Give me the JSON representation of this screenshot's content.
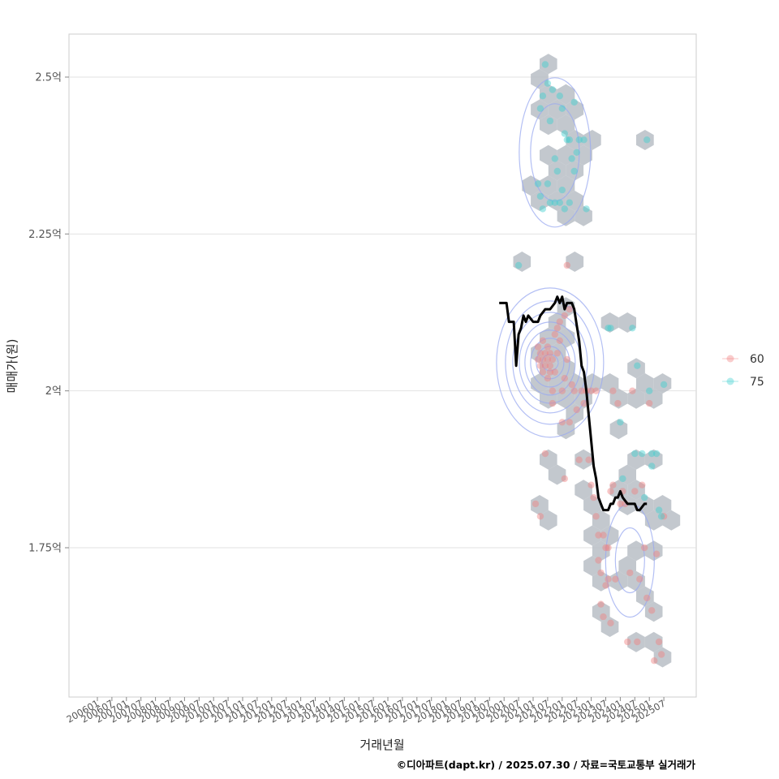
{
  "chart_data": {
    "type": "scatter",
    "xlabel": "거래년월",
    "ylabel": "매매가(원)",
    "caption": "©디아파트(dapt.kr) / 2025.07.30 / 자료=국토교통부 실거래가",
    "x_ticks": [
      "200601",
      "200607",
      "200701",
      "200707",
      "200801",
      "200807",
      "200901",
      "200907",
      "201001",
      "201007",
      "201101",
      "201107",
      "201201",
      "201207",
      "201301",
      "201307",
      "201401",
      "201407",
      "201501",
      "201507",
      "201601",
      "201607",
      "201701",
      "201707",
      "201801",
      "201807",
      "201901",
      "201907",
      "202001",
      "202007",
      "202101",
      "202107",
      "202201",
      "202207",
      "202301",
      "202307",
      "202401",
      "202407",
      "202501",
      "202507"
    ],
    "y_ticks": [
      {
        "value": 17500,
        "label": "1.75억"
      },
      {
        "value": 20000,
        "label": "2억"
      },
      {
        "value": 22500,
        "label": "2.25억"
      },
      {
        "value": 25000,
        "label": "2.5억"
      }
    ],
    "ylim": [
      15500,
      26000
    ],
    "grid": true,
    "legend_position": "right",
    "colors": {
      "60": "#f08080",
      "75": "#3fcfcf",
      "hex": "#b9bec6",
      "density": "#9aaaf0",
      "trend": "#000000"
    },
    "series": [
      {
        "name": "60",
        "points": [
          [
            "2021-03",
            20500
          ],
          [
            "2021-03",
            20700
          ],
          [
            "2021-04",
            20400
          ],
          [
            "2021-04",
            20600
          ],
          [
            "2021-05",
            20300
          ],
          [
            "2021-05",
            20500
          ],
          [
            "2021-05",
            20800
          ],
          [
            "2021-06",
            20400
          ],
          [
            "2021-06",
            20600
          ],
          [
            "2021-07",
            20200
          ],
          [
            "2021-07",
            20500
          ],
          [
            "2021-07",
            20700
          ],
          [
            "2021-08",
            20400
          ],
          [
            "2021-08",
            20300
          ],
          [
            "2021-08",
            20600
          ],
          [
            "2021-09",
            20000
          ],
          [
            "2021-09",
            19800
          ],
          [
            "2021-09",
            20500
          ],
          [
            "2021-10",
            20300
          ],
          [
            "2021-10",
            20900
          ],
          [
            "2021-11",
            21000
          ],
          [
            "2021-11",
            20600
          ],
          [
            "2021-12",
            21100
          ],
          [
            "2021-12",
            20800
          ],
          [
            "2022-01",
            20000
          ],
          [
            "2022-01",
            19500
          ],
          [
            "2022-02",
            20200
          ],
          [
            "2022-02",
            21200
          ],
          [
            "2022-03",
            22000
          ],
          [
            "2022-03",
            20500
          ],
          [
            "2022-04",
            19500
          ],
          [
            "2022-04",
            21300
          ],
          [
            "2022-05",
            20100
          ],
          [
            "2022-06",
            20000
          ],
          [
            "2022-07",
            19700
          ],
          [
            "2022-08",
            18900
          ],
          [
            "2022-10",
            19800
          ],
          [
            "2022-11",
            20000
          ],
          [
            "2022-12",
            18900
          ],
          [
            "2023-01",
            18500
          ],
          [
            "2023-01",
            20000
          ],
          [
            "2023-02",
            18300
          ],
          [
            "2023-03",
            20000
          ],
          [
            "2023-03",
            18000
          ],
          [
            "2023-04",
            17700
          ],
          [
            "2023-04",
            17300
          ],
          [
            "2023-05",
            17100
          ],
          [
            "2023-05",
            16600
          ],
          [
            "2023-06",
            17700
          ],
          [
            "2023-06",
            16400
          ],
          [
            "2023-07",
            17500
          ],
          [
            "2023-07",
            16900
          ],
          [
            "2023-08",
            17500
          ],
          [
            "2023-08",
            17000
          ],
          [
            "2023-09",
            18400
          ],
          [
            "2023-09",
            16300
          ],
          [
            "2023-10",
            20000
          ],
          [
            "2023-10",
            18500
          ],
          [
            "2023-11",
            17000
          ],
          [
            "2023-12",
            19800
          ],
          [
            "2024-01",
            18200
          ],
          [
            "2024-02",
            18400
          ],
          [
            "2024-03",
            18200
          ],
          [
            "2024-04",
            16000
          ],
          [
            "2024-05",
            17100
          ],
          [
            "2024-06",
            20000
          ],
          [
            "2024-07",
            18400
          ],
          [
            "2024-08",
            16000
          ],
          [
            "2024-09",
            17000
          ],
          [
            "2024-10",
            18500
          ],
          [
            "2024-11",
            17500
          ],
          [
            "2024-12",
            16700
          ],
          [
            "2025-01",
            19800
          ],
          [
            "2025-02",
            16500
          ],
          [
            "2025-03",
            15700
          ],
          [
            "2025-04",
            17400
          ],
          [
            "2025-05",
            16000
          ],
          [
            "2025-06",
            15800
          ],
          [
            "2025-07",
            18000
          ],
          [
            "2021-02",
            18200
          ],
          [
            "2021-04",
            18000
          ],
          [
            "2021-06",
            19000
          ],
          [
            "2022-09",
            20000
          ],
          [
            "2022-02",
            18600
          ]
        ]
      },
      {
        "name": "75",
        "points": [
          [
            "2020-07",
            22000
          ],
          [
            "2021-04",
            24500
          ],
          [
            "2021-05",
            24700
          ],
          [
            "2021-06",
            25200
          ],
          [
            "2021-07",
            24900
          ],
          [
            "2021-08",
            24300
          ],
          [
            "2021-09",
            24800
          ],
          [
            "2021-10",
            23700
          ],
          [
            "2021-11",
            23500
          ],
          [
            "2021-12",
            24700
          ],
          [
            "2022-01",
            24500
          ],
          [
            "2022-02",
            24100
          ],
          [
            "2022-03",
            24000
          ],
          [
            "2022-04",
            24000
          ],
          [
            "2022-05",
            23700
          ],
          [
            "2022-06",
            23500
          ],
          [
            "2021-03",
            23300
          ],
          [
            "2021-04",
            23100
          ],
          [
            "2021-05",
            22900
          ],
          [
            "2021-07",
            23300
          ],
          [
            "2021-08",
            23000
          ],
          [
            "2021-10",
            23000
          ],
          [
            "2021-12",
            23000
          ],
          [
            "2022-01",
            23200
          ],
          [
            "2022-02",
            22900
          ],
          [
            "2022-04",
            23000
          ],
          [
            "2022-06",
            24600
          ],
          [
            "2022-07",
            23800
          ],
          [
            "2022-08",
            24000
          ],
          [
            "2022-10",
            24000
          ],
          [
            "2022-11",
            22900
          ],
          [
            "2023-08",
            21000
          ],
          [
            "2024-01",
            19500
          ],
          [
            "2024-02",
            18600
          ],
          [
            "2024-06",
            21000
          ],
          [
            "2024-07",
            19000
          ],
          [
            "2024-08",
            20400
          ],
          [
            "2024-10",
            19000
          ],
          [
            "2024-11",
            18300
          ],
          [
            "2025-01",
            20000
          ],
          [
            "2025-02",
            18800
          ],
          [
            "2025-04",
            19000
          ],
          [
            "2025-05",
            18100
          ],
          [
            "2025-06",
            18000
          ],
          [
            "2025-07",
            20100
          ],
          [
            "2023-09",
            21000
          ],
          [
            "2024-12",
            24000
          ],
          [
            "2025-02",
            19000
          ]
        ]
      }
    ],
    "trend_line": [
      [
        "2019-11",
        21400
      ],
      [
        "2020-02",
        21400
      ],
      [
        "2020-03",
        21100
      ],
      [
        "2020-05",
        21100
      ],
      [
        "2020-06",
        20400
      ],
      [
        "2020-07",
        20900
      ],
      [
        "2020-08",
        21000
      ],
      [
        "2020-09",
        21200
      ],
      [
        "2020-10",
        21100
      ],
      [
        "2020-11",
        21200
      ],
      [
        "2021-01",
        21100
      ],
      [
        "2021-03",
        21100
      ],
      [
        "2021-04",
        21200
      ],
      [
        "2021-06",
        21300
      ],
      [
        "2021-08",
        21300
      ],
      [
        "2021-10",
        21400
      ],
      [
        "2021-11",
        21500
      ],
      [
        "2021-12",
        21400
      ],
      [
        "2022-01",
        21500
      ],
      [
        "2022-02",
        21300
      ],
      [
        "2022-03",
        21400
      ],
      [
        "2022-05",
        21400
      ],
      [
        "2022-06",
        21300
      ],
      [
        "2022-08",
        20800
      ],
      [
        "2022-09",
        20400
      ],
      [
        "2022-10",
        20300
      ],
      [
        "2022-11",
        20000
      ],
      [
        "2022-12",
        19600
      ],
      [
        "2023-01",
        19200
      ],
      [
        "2023-02",
        18800
      ],
      [
        "2023-03",
        18600
      ],
      [
        "2023-04",
        18300
      ],
      [
        "2023-05",
        18200
      ],
      [
        "2023-06",
        18100
      ],
      [
        "2023-08",
        18100
      ],
      [
        "2023-09",
        18200
      ],
      [
        "2023-10",
        18200
      ],
      [
        "2023-11",
        18300
      ],
      [
        "2023-12",
        18300
      ],
      [
        "2024-01",
        18400
      ],
      [
        "2024-02",
        18300
      ],
      [
        "2024-04",
        18200
      ],
      [
        "2024-06",
        18200
      ],
      [
        "2024-07",
        18200
      ],
      [
        "2024-08",
        18100
      ],
      [
        "2024-09",
        18100
      ],
      [
        "2024-11",
        18200
      ],
      [
        "2024-12",
        18200
      ]
    ]
  }
}
